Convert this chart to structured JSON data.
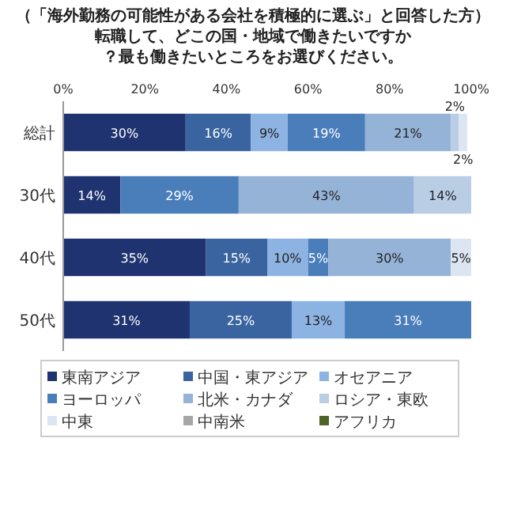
{
  "chart_data": {
    "type": "bar",
    "orientation": "horizontal",
    "stacked": true,
    "title": "（「海外勤務の可能性がある会社を積極的に選ぶ」と回答した方）",
    "subtitle": "転職して、どこの国・地域で働きたいですか？最も働きたいところをお選びください。",
    "categories": [
      "総計",
      "30代",
      "40代",
      "50代"
    ],
    "xlim": [
      0,
      100
    ],
    "xticks": [
      {
        "value": 0,
        "label": "0%"
      },
      {
        "value": 20,
        "label": "20%"
      },
      {
        "value": 40,
        "label": "40%"
      },
      {
        "value": 60,
        "label": "60%"
      },
      {
        "value": 80,
        "label": "80%"
      },
      {
        "value": 100,
        "label": "100%"
      }
    ],
    "grid": false,
    "legend": "bottom",
    "series": [
      {
        "name": "東南アジア",
        "color": "#1f3370",
        "values": [
          30,
          14,
          35,
          31
        ],
        "value_labels": [
          "30%",
          "14%",
          "35%",
          "31%"
        ]
      },
      {
        "name": "中国・東アジア",
        "color": "#3a64a0",
        "values": [
          16,
          null,
          15,
          25
        ],
        "value_labels": [
          "16%",
          null,
          "15%",
          "25%"
        ]
      },
      {
        "name": "オセアニア",
        "color": "#8db3e2",
        "values": [
          9,
          null,
          10,
          13
        ],
        "value_labels": [
          "9%",
          null,
          "10%",
          "13%"
        ]
      },
      {
        "name": "ヨーロッパ",
        "color": "#4a7ebb",
        "values": [
          19,
          29,
          5,
          31
        ],
        "value_labels": [
          "19%",
          "29%",
          "5%",
          "31%"
        ]
      },
      {
        "name": "北米・カナダ",
        "color": "#95b3d7",
        "values": [
          21,
          43,
          30,
          null
        ],
        "value_labels": [
          "21%",
          "43%",
          "30%",
          null
        ]
      },
      {
        "name": "ロシア・東欧",
        "color": "#b9cde5",
        "values": [
          2,
          14,
          null,
          null
        ],
        "value_labels": [
          "2%",
          "14%",
          null,
          null
        ]
      },
      {
        "name": "中東",
        "color": "#dce6f2",
        "values": [
          2,
          null,
          5,
          null
        ],
        "value_labels": [
          "2%",
          null,
          "5%",
          null
        ]
      },
      {
        "name": "中南米",
        "color": "#a6a6a6",
        "values": [
          null,
          null,
          null,
          null
        ],
        "value_labels": [
          null,
          null,
          null,
          null
        ]
      },
      {
        "name": "アフリカ",
        "color": "#4f6228",
        "values": [
          null,
          null,
          null,
          null
        ],
        "value_labels": [
          null,
          null,
          null,
          null
        ]
      }
    ]
  }
}
